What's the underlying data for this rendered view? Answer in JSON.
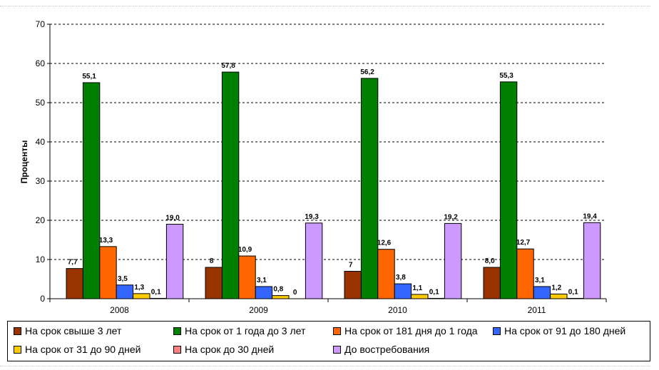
{
  "chart_data": {
    "type": "bar",
    "ylabel": "Проценты",
    "ylim": [
      0,
      70
    ],
    "yticks": [
      0,
      10,
      20,
      30,
      40,
      50,
      60,
      70
    ],
    "grid": true,
    "legend_position": "bottom",
    "categories": [
      "2008",
      "2009",
      "2010",
      "2011"
    ],
    "series": [
      {
        "name": "На срок свыше 3 лет",
        "color": "#993300",
        "values": [
          7.7,
          8,
          7,
          8.0
        ],
        "labels": [
          "7,7",
          "8",
          "7",
          "8,0"
        ]
      },
      {
        "name": "На срок от 1 года до 3 лет",
        "color": "#008000",
        "values": [
          55.1,
          57.8,
          56.2,
          55.3
        ],
        "labels": [
          "55,1",
          "57,8",
          "56,2",
          "55,3"
        ]
      },
      {
        "name": "На срок от 181 дня до 1 года",
        "color": "#ff6600",
        "values": [
          13.3,
          10.9,
          12.6,
          12.7
        ],
        "labels": [
          "13,3",
          "10,9",
          "12,6",
          "12,7"
        ]
      },
      {
        "name": "На срок от 91 до 180 дней",
        "color": "#3366ff",
        "values": [
          3.5,
          3.1,
          3.8,
          3.1
        ],
        "labels": [
          "3,5",
          "3,1",
          "3,8",
          "3,1"
        ]
      },
      {
        "name": "На срок от 31 до 90 дней",
        "color": "#ffcc00",
        "values": [
          1.3,
          0.8,
          1.1,
          1.2
        ],
        "labels": [
          "1,3",
          "0,8",
          "1,1",
          "1,2"
        ]
      },
      {
        "name": "На срок до 30 дней",
        "color": "#ff8080",
        "values": [
          0.1,
          0,
          0.1,
          0.1
        ],
        "labels": [
          "0,1",
          "0",
          "0,1",
          "0,1"
        ]
      },
      {
        "name": "До востребования",
        "color": "#cc99ff",
        "values": [
          19.0,
          19.3,
          19.2,
          19.4
        ],
        "labels": [
          "19,0",
          "19,3",
          "19,2",
          "19,4"
        ]
      }
    ]
  }
}
